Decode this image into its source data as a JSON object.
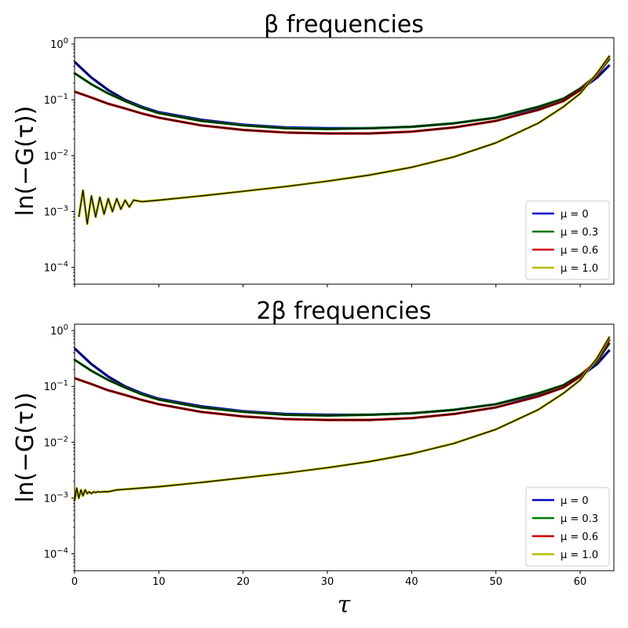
{
  "chart_data": [
    {
      "type": "line",
      "title": "β frequencies",
      "xlabel": "",
      "ylabel": "ln(−G(τ))",
      "yscale": "log",
      "xlim": [
        0,
        64
      ],
      "ylim": [
        5e-05,
        1.3
      ],
      "xticks": [
        0,
        10,
        20,
        30,
        40,
        50,
        60
      ],
      "xtick_labels_visible": false,
      "yticks": [
        {
          "value": 0.0001,
          "base": "10",
          "exp": "−4"
        },
        {
          "value": 0.001,
          "base": "10",
          "exp": "−3"
        },
        {
          "value": 0.01,
          "base": "10",
          "exp": "−2"
        },
        {
          "value": 0.1,
          "base": "10",
          "exp": "−1"
        },
        {
          "value": 1,
          "base": "10",
          "exp": "0"
        }
      ],
      "legend_position": "lower right",
      "series": [
        {
          "name": "μ = 0",
          "color": "#0000cc",
          "overlay_color": "#000000",
          "x": [
            0,
            2,
            4,
            6,
            8,
            10,
            15,
            20,
            25,
            30,
            35,
            40,
            45,
            50,
            55,
            58,
            60,
            62,
            63.5
          ],
          "y": [
            0.48,
            0.25,
            0.15,
            0.1,
            0.075,
            0.06,
            0.044,
            0.036,
            0.032,
            0.031,
            0.031,
            0.033,
            0.038,
            0.048,
            0.072,
            0.1,
            0.15,
            0.25,
            0.42
          ]
        },
        {
          "name": "μ = 0.3",
          "color": "#007700",
          "overlay_color": "#000000",
          "x": [
            0,
            2,
            4,
            6,
            8,
            10,
            15,
            20,
            25,
            30,
            35,
            40,
            45,
            50,
            55,
            58,
            60,
            62,
            63.5
          ],
          "y": [
            0.3,
            0.19,
            0.13,
            0.095,
            0.072,
            0.058,
            0.042,
            0.035,
            0.031,
            0.03,
            0.031,
            0.033,
            0.038,
            0.048,
            0.075,
            0.105,
            0.16,
            0.28,
            0.55
          ]
        },
        {
          "name": "μ = 0.6",
          "color": "#cc0000",
          "overlay_color": "#000000",
          "x": [
            0,
            2,
            4,
            6,
            8,
            10,
            15,
            20,
            25,
            30,
            35,
            40,
            45,
            50,
            55,
            58,
            60,
            62,
            63.5
          ],
          "y": [
            0.14,
            0.11,
            0.085,
            0.07,
            0.057,
            0.048,
            0.035,
            0.029,
            0.026,
            0.025,
            0.025,
            0.027,
            0.032,
            0.042,
            0.066,
            0.095,
            0.15,
            0.28,
            0.6
          ]
        },
        {
          "name": "μ = 1.0",
          "color": "#bbbb00",
          "overlay_color": "#000000",
          "x": [
            0.5,
            1,
            1.5,
            2,
            2.5,
            3,
            3.5,
            4,
            4.5,
            5,
            5.5,
            6,
            6.5,
            7,
            8,
            10,
            15,
            20,
            25,
            30,
            35,
            40,
            45,
            50,
            55,
            58,
            60,
            62,
            63.5
          ],
          "y": [
            0.0008,
            0.0024,
            0.0006,
            0.0019,
            0.0008,
            0.0018,
            0.0009,
            0.0017,
            0.001,
            0.0017,
            0.0011,
            0.0016,
            0.0012,
            0.0016,
            0.0015,
            0.0016,
            0.0019,
            0.0023,
            0.0028,
            0.0035,
            0.0045,
            0.0062,
            0.0095,
            0.017,
            0.038,
            0.075,
            0.13,
            0.3,
            0.62
          ]
        }
      ]
    },
    {
      "type": "line",
      "title": "2β frequencies",
      "xlabel": "τ",
      "ylabel": "ln(−G(τ))",
      "yscale": "log",
      "xlim": [
        0,
        64
      ],
      "ylim": [
        5e-05,
        1.3
      ],
      "xticks": [
        0,
        10,
        20,
        30,
        40,
        50,
        60
      ],
      "xtick_labels_visible": true,
      "yticks": [
        {
          "value": 0.0001,
          "base": "10",
          "exp": "−4"
        },
        {
          "value": 0.001,
          "base": "10",
          "exp": "−3"
        },
        {
          "value": 0.01,
          "base": "10",
          "exp": "−2"
        },
        {
          "value": 0.1,
          "base": "10",
          "exp": "−1"
        },
        {
          "value": 1,
          "base": "10",
          "exp": "0"
        }
      ],
      "legend_position": "lower right",
      "series": [
        {
          "name": "μ = 0",
          "color": "#0000cc",
          "overlay_color": "#000000",
          "x": [
            0,
            2,
            4,
            6,
            8,
            10,
            15,
            20,
            25,
            30,
            35,
            40,
            45,
            50,
            55,
            58,
            60,
            62,
            63.5
          ],
          "y": [
            0.48,
            0.25,
            0.15,
            0.1,
            0.075,
            0.06,
            0.044,
            0.036,
            0.032,
            0.031,
            0.031,
            0.033,
            0.038,
            0.048,
            0.072,
            0.1,
            0.15,
            0.25,
            0.45
          ]
        },
        {
          "name": "μ = 0.3",
          "color": "#007700",
          "overlay_color": "#000000",
          "x": [
            0,
            2,
            4,
            6,
            8,
            10,
            15,
            20,
            25,
            30,
            35,
            40,
            45,
            50,
            55,
            58,
            60,
            62,
            63.5
          ],
          "y": [
            0.3,
            0.19,
            0.13,
            0.095,
            0.072,
            0.058,
            0.042,
            0.035,
            0.031,
            0.03,
            0.031,
            0.033,
            0.038,
            0.048,
            0.075,
            0.105,
            0.16,
            0.28,
            0.6
          ]
        },
        {
          "name": "μ = 0.6",
          "color": "#cc0000",
          "overlay_color": "#000000",
          "x": [
            0,
            2,
            4,
            6,
            8,
            10,
            15,
            20,
            25,
            30,
            35,
            40,
            45,
            50,
            55,
            58,
            60,
            62,
            63.5
          ],
          "y": [
            0.14,
            0.11,
            0.085,
            0.07,
            0.057,
            0.048,
            0.035,
            0.029,
            0.026,
            0.025,
            0.025,
            0.027,
            0.032,
            0.042,
            0.066,
            0.095,
            0.15,
            0.3,
            0.7
          ]
        },
        {
          "name": "μ = 1.0",
          "color": "#bbbb00",
          "overlay_color": "#000000",
          "x": [
            0,
            0.25,
            0.5,
            0.75,
            1,
            1.25,
            1.5,
            1.75,
            2,
            2.25,
            2.5,
            2.75,
            3,
            3.5,
            4,
            5,
            10,
            15,
            20,
            25,
            30,
            35,
            40,
            45,
            50,
            55,
            58,
            60,
            62,
            63.5
          ],
          "y": [
            0.0009,
            0.0015,
            0.001,
            0.0014,
            0.0011,
            0.0014,
            0.0012,
            0.0013,
            0.0012,
            0.0013,
            0.00125,
            0.0013,
            0.00128,
            0.0013,
            0.0013,
            0.0014,
            0.0016,
            0.0019,
            0.0023,
            0.0028,
            0.0035,
            0.0045,
            0.0062,
            0.0095,
            0.017,
            0.038,
            0.075,
            0.13,
            0.32,
            0.78
          ]
        }
      ]
    }
  ]
}
